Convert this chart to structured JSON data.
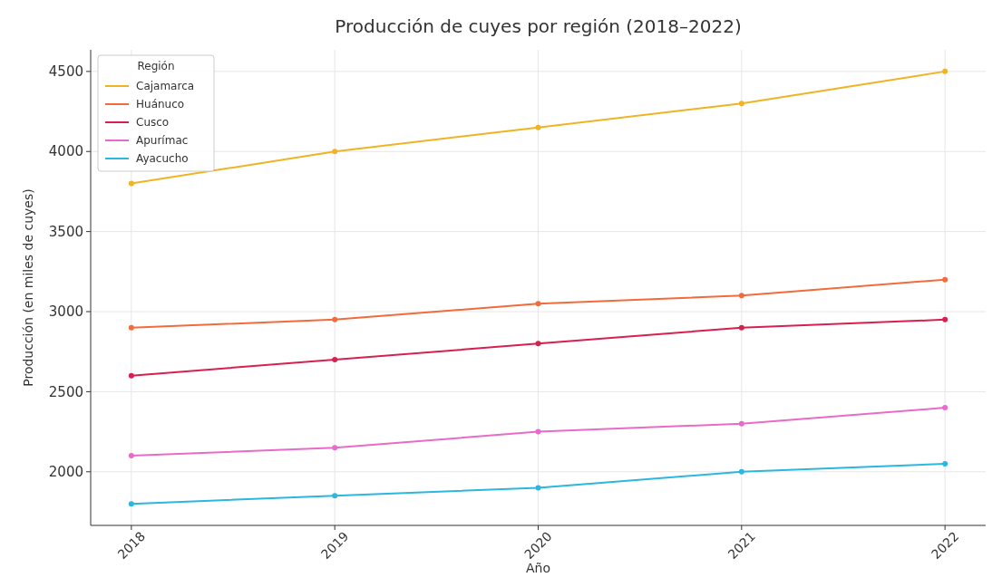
{
  "chart_data": {
    "type": "line",
    "title": "Producción de cuyes por región (2018–2022)",
    "xlabel": "Año",
    "ylabel": "Producción (en miles de cuyes)",
    "legend_title": "Región",
    "x": [
      2018,
      2019,
      2020,
      2021,
      2022
    ],
    "xlim": [
      2017.8,
      2022.2
    ],
    "xticks": [
      2018,
      2019,
      2020,
      2021,
      2022
    ],
    "ylim": [
      1665,
      4635
    ],
    "yticks": [
      2000,
      2500,
      3000,
      3500,
      4000,
      4500
    ],
    "grid": true,
    "legend": "top left",
    "marker": "circle",
    "line_style": "solid",
    "series": [
      {
        "name": "Cajamarca",
        "color": "#f0b323",
        "values": [
          3800,
          4000,
          4150,
          4300,
          4500
        ]
      },
      {
        "name": "Huánuco",
        "color": "#f26b3a",
        "values": [
          2900,
          2950,
          3050,
          3100,
          3200
        ]
      },
      {
        "name": "Cusco",
        "color": "#d6204e",
        "values": [
          2600,
          2700,
          2800,
          2900,
          2950
        ]
      },
      {
        "name": "Apurímac",
        "color": "#e86bc9",
        "values": [
          2100,
          2150,
          2250,
          2300,
          2400
        ]
      },
      {
        "name": "Ayacucho",
        "color": "#2ab7e0",
        "values": [
          1800,
          1850,
          1900,
          2000,
          2050
        ]
      }
    ]
  }
}
